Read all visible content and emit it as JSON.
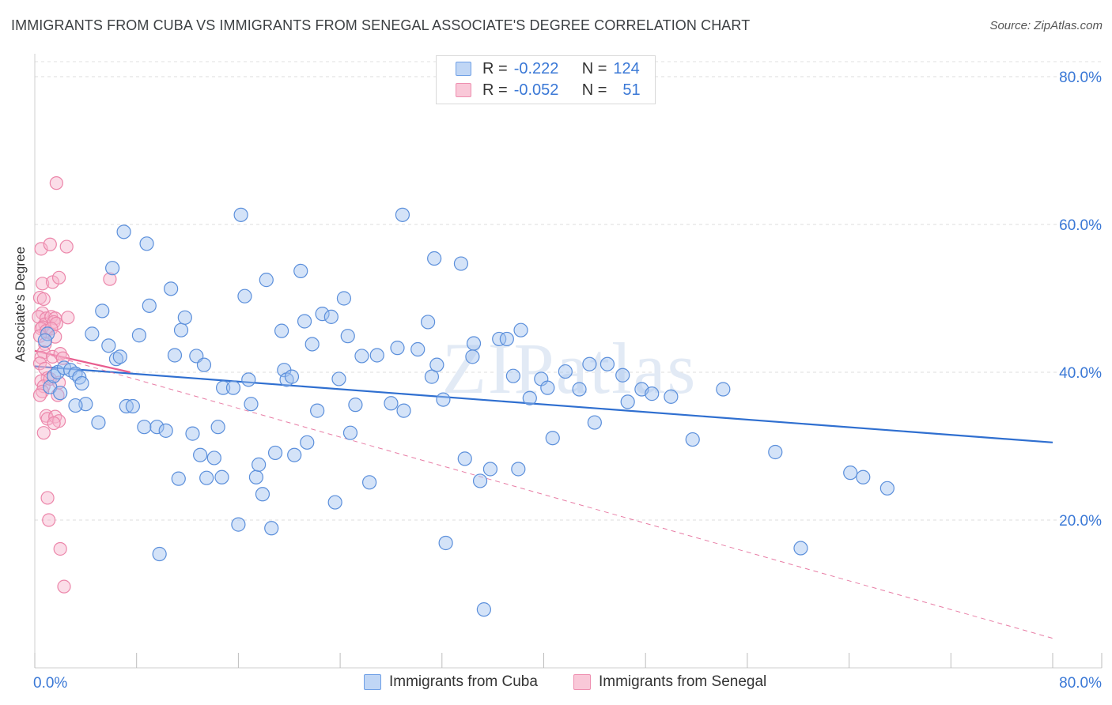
{
  "title": "IMMIGRANTS FROM CUBA VS IMMIGRANTS FROM SENEGAL ASSOCIATE'S DEGREE CORRELATION CHART",
  "source": "Source: ZipAtlas.com",
  "watermark": "ZIPatlas",
  "legend": {
    "r_label": "R =",
    "n_label": "N =",
    "rows": [
      {
        "r": "-0.222",
        "n": "124",
        "color": "#6fa0e6",
        "fill": "#c0d6f5"
      },
      {
        "r": "-0.052",
        "n": "51",
        "color": "#ee8fb0",
        "fill": "#f9c8d8"
      }
    ]
  },
  "bottom_legend": [
    {
      "label": "Immigrants from Cuba",
      "color": "#6fa0e6",
      "fill": "#c0d6f5"
    },
    {
      "label": "Immigrants from Senegal",
      "color": "#ee8fb0",
      "fill": "#f9c8d8"
    }
  ],
  "chart_data": {
    "type": "scatter",
    "title": "IMMIGRANTS FROM CUBA VS IMMIGRANTS FROM SENEGAL ASSOCIATE'S DEGREE CORRELATION CHART",
    "ylabel": "Associate's Degree",
    "xlabel": "",
    "x_ticks": [
      "0.0%",
      "80.0%"
    ],
    "y_ticks": [
      "20.0%",
      "40.0%",
      "60.0%",
      "80.0%"
    ],
    "xlim": [
      0,
      80
    ],
    "ylim": [
      0,
      80
    ],
    "grid": true,
    "legend_placement": "top-center",
    "series": [
      {
        "name": "Immigrants from Cuba",
        "color": "#5b8fdb",
        "trend": {
          "x": [
            0,
            80
          ],
          "y": [
            40.8,
            30.5
          ],
          "style": "solid",
          "color": "#2f6fd0"
        },
        "points": [
          [
            1.0,
            45.2
          ],
          [
            0.8,
            44.3
          ],
          [
            1.2,
            38.0
          ],
          [
            1.5,
            39.5
          ],
          [
            2.0,
            37.2
          ],
          [
            1.8,
            40.0
          ],
          [
            2.3,
            40.6
          ],
          [
            2.8,
            40.3
          ],
          [
            3.2,
            39.8
          ],
          [
            3.5,
            39.3
          ],
          [
            3.7,
            38.5
          ],
          [
            4.0,
            35.7
          ],
          [
            3.2,
            35.5
          ],
          [
            4.5,
            45.2
          ],
          [
            5.0,
            33.2
          ],
          [
            5.3,
            48.3
          ],
          [
            5.8,
            43.6
          ],
          [
            6.1,
            54.1
          ],
          [
            6.4,
            41.8
          ],
          [
            6.7,
            42.1
          ],
          [
            7.2,
            35.4
          ],
          [
            7.7,
            35.4
          ],
          [
            7.0,
            59.0
          ],
          [
            8.2,
            45.0
          ],
          [
            8.6,
            32.6
          ],
          [
            8.8,
            57.4
          ],
          [
            9.0,
            49.0
          ],
          [
            9.6,
            32.6
          ],
          [
            9.8,
            15.4
          ],
          [
            10.3,
            32.1
          ],
          [
            10.7,
            51.3
          ],
          [
            11.0,
            42.3
          ],
          [
            11.3,
            25.6
          ],
          [
            11.5,
            45.7
          ],
          [
            11.8,
            47.4
          ],
          [
            12.4,
            31.7
          ],
          [
            12.7,
            42.2
          ],
          [
            13.0,
            28.8
          ],
          [
            13.3,
            41.0
          ],
          [
            13.5,
            25.7
          ],
          [
            14.1,
            28.4
          ],
          [
            14.4,
            32.6
          ],
          [
            14.7,
            25.8
          ],
          [
            14.8,
            37.9
          ],
          [
            15.6,
            37.9
          ],
          [
            16.0,
            19.4
          ],
          [
            16.2,
            61.3
          ],
          [
            16.5,
            50.3
          ],
          [
            16.8,
            39.0
          ],
          [
            17.0,
            35.7
          ],
          [
            17.4,
            25.8
          ],
          [
            17.6,
            27.5
          ],
          [
            17.9,
            23.5
          ],
          [
            18.2,
            52.5
          ],
          [
            18.6,
            18.9
          ],
          [
            18.9,
            29.1
          ],
          [
            19.4,
            45.6
          ],
          [
            19.6,
            40.3
          ],
          [
            19.8,
            39.0
          ],
          [
            20.2,
            39.4
          ],
          [
            20.4,
            28.8
          ],
          [
            20.9,
            53.7
          ],
          [
            21.2,
            46.9
          ],
          [
            21.4,
            30.5
          ],
          [
            21.8,
            43.8
          ],
          [
            22.2,
            34.8
          ],
          [
            22.6,
            47.9
          ],
          [
            23.3,
            47.5
          ],
          [
            23.6,
            22.4
          ],
          [
            23.9,
            39.1
          ],
          [
            24.3,
            50.0
          ],
          [
            24.6,
            44.9
          ],
          [
            24.8,
            31.8
          ],
          [
            25.2,
            35.6
          ],
          [
            25.7,
            42.2
          ],
          [
            26.3,
            25.1
          ],
          [
            26.9,
            42.3
          ],
          [
            28.0,
            35.8
          ],
          [
            28.5,
            43.3
          ],
          [
            28.9,
            61.3
          ],
          [
            29.0,
            34.8
          ],
          [
            30.1,
            43.1
          ],
          [
            30.9,
            46.8
          ],
          [
            31.2,
            39.4
          ],
          [
            31.4,
            55.4
          ],
          [
            31.6,
            41.0
          ],
          [
            32.1,
            36.3
          ],
          [
            32.3,
            16.9
          ],
          [
            33.5,
            54.7
          ],
          [
            33.8,
            28.3
          ],
          [
            34.4,
            42.1
          ],
          [
            34.5,
            43.9
          ],
          [
            35.0,
            25.3
          ],
          [
            35.3,
            7.9
          ],
          [
            35.8,
            26.9
          ],
          [
            36.5,
            44.5
          ],
          [
            37.1,
            44.5
          ],
          [
            37.6,
            39.5
          ],
          [
            38.0,
            26.9
          ],
          [
            38.2,
            45.7
          ],
          [
            38.9,
            36.5
          ],
          [
            39.8,
            39.1
          ],
          [
            40.3,
            37.9
          ],
          [
            40.7,
            31.1
          ],
          [
            41.7,
            40.1
          ],
          [
            42.8,
            37.7
          ],
          [
            43.6,
            41.1
          ],
          [
            44.0,
            33.2
          ],
          [
            45.0,
            41.1
          ],
          [
            46.2,
            39.6
          ],
          [
            46.6,
            36.0
          ],
          [
            47.7,
            37.7
          ],
          [
            48.5,
            37.1
          ],
          [
            50.0,
            36.7
          ],
          [
            51.7,
            30.9
          ],
          [
            54.1,
            37.7
          ],
          [
            58.2,
            29.2
          ],
          [
            60.2,
            16.2
          ],
          [
            64.1,
            26.4
          ],
          [
            65.1,
            25.8
          ],
          [
            67.0,
            24.3
          ]
        ]
      },
      {
        "name": "Immigrants from Senegal",
        "color": "#ec86aa",
        "trend_solid": {
          "x": [
            0,
            7.5
          ],
          "y": [
            42.9,
            40.0
          ],
          "style": "solid",
          "color": "#e85d8f"
        },
        "trend_dashed": {
          "x": [
            0,
            80
          ],
          "y": [
            42.9,
            4.0
          ],
          "style": "dashed",
          "color": "#e87ea6"
        },
        "points": [
          [
            0.5,
            56.7
          ],
          [
            0.6,
            52.0
          ],
          [
            0.4,
            50.1
          ],
          [
            0.7,
            49.9
          ],
          [
            0.6,
            48.0
          ],
          [
            0.3,
            47.5
          ],
          [
            0.9,
            47.3
          ],
          [
            0.8,
            46.5
          ],
          [
            0.6,
            46.1
          ],
          [
            0.5,
            45.9
          ],
          [
            0.9,
            45.6
          ],
          [
            0.4,
            44.9
          ],
          [
            0.8,
            43.8
          ],
          [
            0.7,
            42.7
          ],
          [
            0.5,
            42.0
          ],
          [
            0.4,
            41.2
          ],
          [
            0.8,
            40.5
          ],
          [
            1.0,
            39.2
          ],
          [
            0.5,
            38.8
          ],
          [
            0.7,
            38.1
          ],
          [
            0.6,
            37.4
          ],
          [
            0.4,
            36.9
          ],
          [
            0.9,
            34.1
          ],
          [
            1.0,
            33.7
          ],
          [
            0.7,
            31.8
          ],
          [
            1.2,
            57.3
          ],
          [
            1.4,
            52.2
          ],
          [
            1.3,
            47.5
          ],
          [
            1.6,
            47.3
          ],
          [
            1.5,
            46.8
          ],
          [
            1.7,
            46.6
          ],
          [
            1.3,
            45.9
          ],
          [
            1.6,
            44.8
          ],
          [
            1.4,
            42.1
          ],
          [
            1.2,
            39.1
          ],
          [
            1.9,
            38.6
          ],
          [
            1.8,
            36.9
          ],
          [
            1.6,
            34.0
          ],
          [
            1.9,
            33.4
          ],
          [
            1.5,
            33.1
          ],
          [
            1.7,
            65.6
          ],
          [
            1.9,
            52.8
          ],
          [
            2.0,
            42.5
          ],
          [
            2.2,
            41.9
          ],
          [
            2.0,
            16.1
          ],
          [
            2.5,
            57.0
          ],
          [
            2.3,
            11.0
          ],
          [
            2.6,
            47.4
          ],
          [
            1.0,
            23.0
          ],
          [
            1.1,
            20.0
          ],
          [
            5.9,
            52.6
          ]
        ]
      }
    ]
  }
}
